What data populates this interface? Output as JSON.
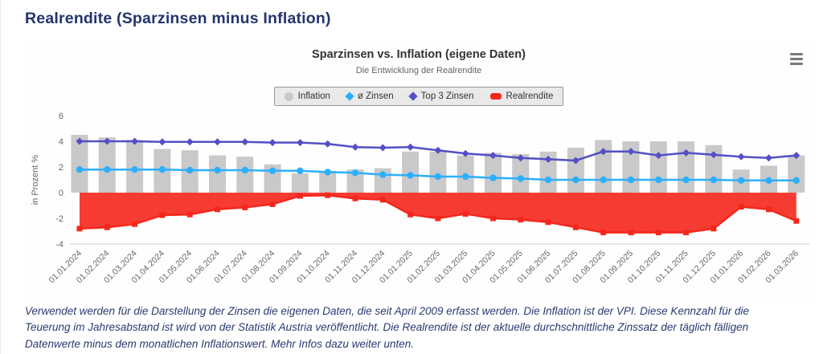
{
  "page": {
    "title": "Realrendite (Sparzinsen minus Inflation)",
    "description": "Verwendet werden für die Darstellung der Zinsen die eigenen Daten, die seit April 2009 erfasst werden. Die Inflation ist der VPI. Diese Kennzahl für die Teuerung im Jahresabstand ist wird von der Statistik Austria veröffentlicht. Die Realrendite ist der aktuelle durchschnittliche Zinssatz der täglich fälligen Datenwerte minus dem monatlichen Inflationswert. Mehr Infos dazu weiter unten."
  },
  "chart": {
    "title": "Sparzinsen vs. Inflation (eigene Daten)",
    "subtitle": "Die Entwicklung der Realrendite"
  },
  "chart_data": {
    "type": "combo",
    "title": "Sparzinsen vs. Inflation (eigene Daten)",
    "subtitle": "Die Entwicklung der Realrendite",
    "ylabel": "in Prozent %",
    "ylim": [
      -4,
      6
    ],
    "yticks": [
      6,
      4,
      2,
      0,
      -2,
      -4
    ],
    "grid": false,
    "legend_position": "top",
    "categories": [
      "01.01.2024",
      "01.02.2024",
      "01.03.2024",
      "01.04.2024",
      "01.05.2024",
      "01.06.2024",
      "01.07.2024",
      "01.08.2024",
      "01.09.2024",
      "01.10.2024",
      "01.11.2024",
      "01.12.2024",
      "01.01.2025",
      "01.02.2025",
      "01.03.2025",
      "01.04.2025",
      "01.05.2025",
      "01.06.2025",
      "01.07.2025",
      "01.08.2025",
      "01.09.2025",
      "01.10.2025",
      "01.11.2025",
      "01.12.2025",
      "01.01.2026",
      "01.02.2026",
      "01.03.2026"
    ],
    "series": [
      {
        "name": "Inflation",
        "type": "bar",
        "marker": "circle",
        "color": "#c9c9c9",
        "values": [
          4.5,
          4.3,
          4.1,
          3.4,
          3.3,
          2.9,
          2.8,
          2.2,
          1.5,
          1.7,
          1.8,
          1.9,
          3.2,
          3.2,
          2.9,
          3.1,
          3.0,
          3.2,
          3.5,
          4.1,
          4.0,
          4.0,
          4.0,
          3.7,
          1.8,
          2.1,
          2.9
        ]
      },
      {
        "name": "ø Zinsen",
        "type": "line",
        "marker": "circle",
        "color": "#2caffe",
        "values": [
          1.8,
          1.8,
          1.8,
          1.8,
          1.75,
          1.75,
          1.75,
          1.7,
          1.7,
          1.6,
          1.55,
          1.4,
          1.35,
          1.25,
          1.25,
          1.15,
          1.1,
          1.0,
          1.0,
          1.0,
          1.0,
          1.0,
          1.0,
          1.0,
          0.95,
          0.95,
          0.95
        ]
      },
      {
        "name": "Top 3 Zinsen",
        "type": "line",
        "marker": "diamond",
        "color": "#544fc5",
        "values": [
          4.0,
          4.0,
          4.0,
          3.95,
          3.95,
          3.95,
          3.95,
          3.9,
          3.9,
          3.8,
          3.55,
          3.5,
          3.55,
          3.3,
          3.05,
          2.9,
          2.7,
          2.6,
          2.5,
          3.2,
          3.2,
          2.9,
          3.1,
          2.95,
          2.8,
          2.7,
          2.9
        ]
      },
      {
        "name": "Realrendite",
        "type": "area",
        "marker": "square",
        "color": "#f5271c",
        "values": [
          -2.8,
          -2.7,
          -2.45,
          -1.75,
          -1.7,
          -1.3,
          -1.15,
          -0.9,
          -0.25,
          -0.2,
          -0.45,
          -0.55,
          -1.7,
          -2.0,
          -1.65,
          -2.0,
          -2.1,
          -2.3,
          -2.7,
          -3.1,
          -3.1,
          -3.1,
          -3.1,
          -2.8,
          -1.1,
          -1.3,
          -2.2
        ]
      }
    ]
  }
}
